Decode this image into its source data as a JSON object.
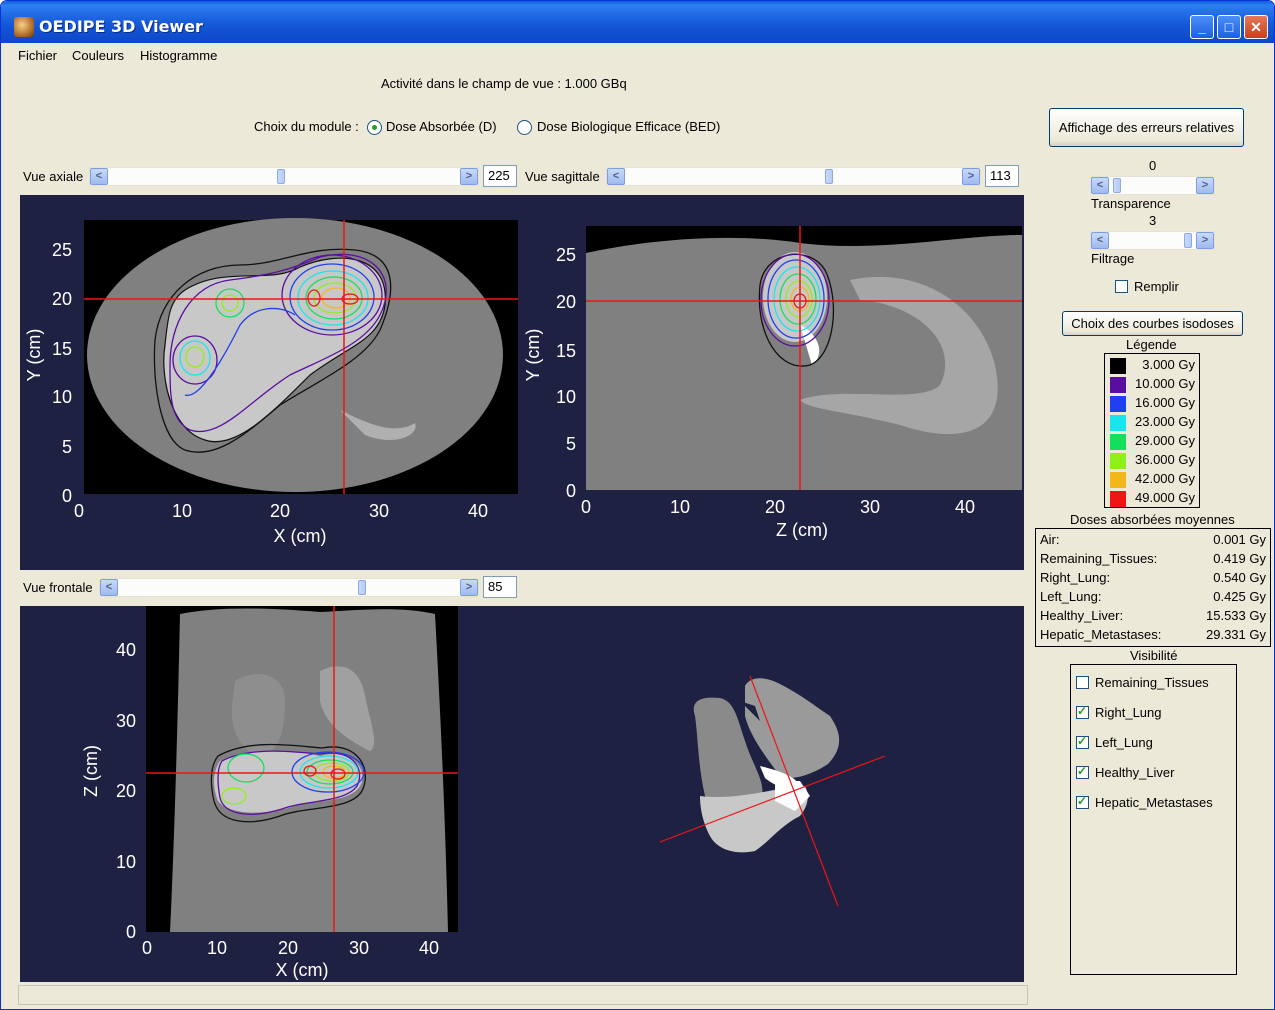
{
  "window": {
    "title": "OEDIPE 3D Viewer"
  },
  "menu": [
    "Fichier",
    "Couleurs",
    "Histogramme"
  ],
  "activity": "Activité dans le champ de vue :   1.000 GBq",
  "module": {
    "label": "Choix du module :",
    "option1": "Dose Absorbée (D)",
    "option2": "Dose Biologique Efficace (BED)"
  },
  "btn_errors": "Affichage des erreurs relatives",
  "views": {
    "axial": {
      "label": "Vue axiale",
      "value": "225"
    },
    "sagittal": {
      "label": "Vue sagittale",
      "value": "113"
    },
    "frontal": {
      "label": "Vue frontale",
      "value": "85"
    }
  },
  "transparence": {
    "value": "0",
    "label": "Transparence"
  },
  "filtrage": {
    "value": "3",
    "label": "Filtrage"
  },
  "remplir": "Remplir",
  "btn_isodoses": "Choix des courbes isodoses",
  "legend": {
    "title": "Légende",
    "items": [
      {
        "color": "#000000",
        "label": "3.000 Gy"
      },
      {
        "color": "#5a0ea0",
        "label": "10.000 Gy"
      },
      {
        "color": "#1f3ff0",
        "label": "16.000 Gy"
      },
      {
        "color": "#18e6ee",
        "label": "23.000 Gy"
      },
      {
        "color": "#12e05a",
        "label": "29.000 Gy"
      },
      {
        "color": "#8ef01a",
        "label": "36.000 Gy"
      },
      {
        "color": "#f2b81a",
        "label": "42.000 Gy"
      },
      {
        "color": "#f01414",
        "label": "49.000 Gy"
      }
    ]
  },
  "doses": {
    "title": "Doses absorbées moyennes",
    "rows": [
      {
        "name": "Air:",
        "value": "0.001 Gy"
      },
      {
        "name": "Remaining_Tissues:",
        "value": "0.419 Gy"
      },
      {
        "name": "Right_Lung:",
        "value": "0.540 Gy"
      },
      {
        "name": "Left_Lung:",
        "value": "0.425 Gy"
      },
      {
        "name": "Healthy_Liver:",
        "value": "15.533 Gy"
      },
      {
        "name": "Hepatic_Metastases:",
        "value": "29.331 Gy"
      }
    ]
  },
  "visibility": {
    "title": "Visibilité",
    "items": [
      {
        "label": "Remaining_Tissues",
        "checked": false
      },
      {
        "label": "Right_Lung",
        "checked": true
      },
      {
        "label": "Left_Lung",
        "checked": true
      },
      {
        "label": "Healthy_Liver",
        "checked": true
      },
      {
        "label": "Hepatic_Metastases",
        "checked": true
      }
    ]
  },
  "plots": {
    "axial": {
      "xlabel": "X (cm)",
      "ylabel": "Y (cm)",
      "xticks": [
        "0",
        "10",
        "20",
        "30",
        "40"
      ],
      "yticks": [
        "0",
        "5",
        "10",
        "15",
        "20",
        "25"
      ]
    },
    "sagittal": {
      "xlabel": "Z (cm)",
      "ylabel": "Y (cm)",
      "xticks": [
        "0",
        "10",
        "20",
        "30",
        "40"
      ],
      "yticks": [
        "0",
        "5",
        "10",
        "15",
        "20",
        "25"
      ]
    },
    "frontal": {
      "xlabel": "X (cm)",
      "ylabel": "Z (cm)",
      "xticks": [
        "0",
        "10",
        "20",
        "30",
        "40"
      ],
      "yticks": [
        "0",
        "10",
        "20",
        "30",
        "40"
      ]
    }
  }
}
